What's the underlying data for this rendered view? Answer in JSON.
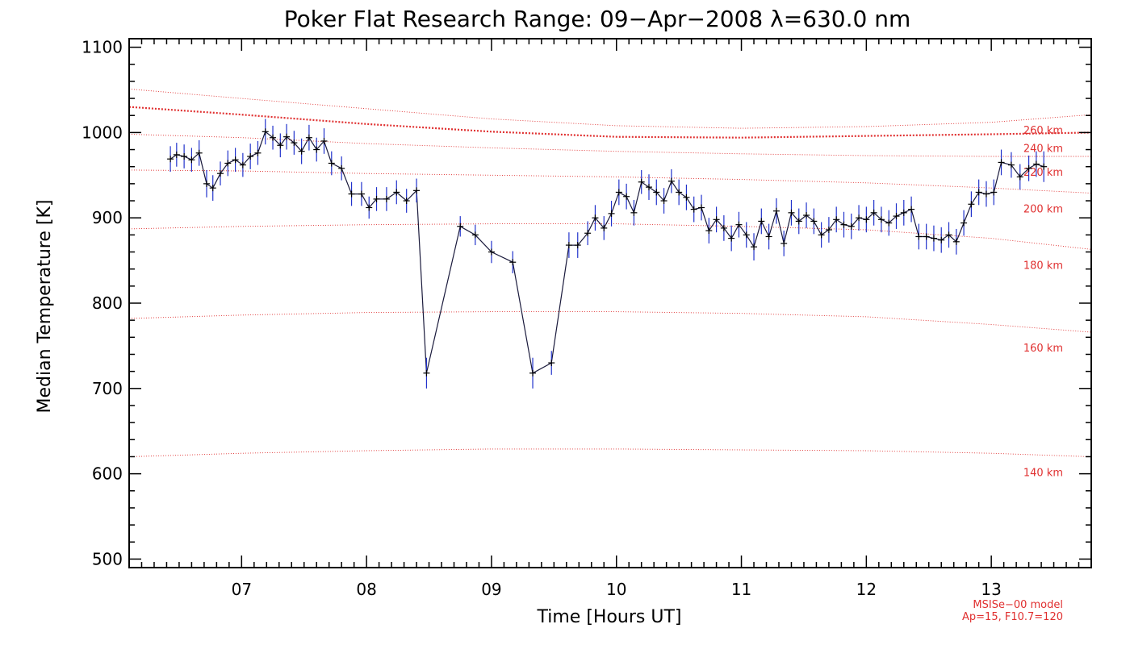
{
  "chart_data": {
    "type": "line",
    "title": "Poker Flat Research Range: 09−Apr−2008 λ=630.0 nm",
    "xlabel": "Time [Hours UT]",
    "ylabel": "Median Temperature [K]",
    "xlim": [
      6.1,
      13.8
    ],
    "ylim": [
      490,
      1110
    ],
    "xticks": [
      7,
      8,
      9,
      10,
      11,
      12,
      13
    ],
    "xtick_labels": [
      "07",
      "08",
      "09",
      "10",
      "11",
      "12",
      "13"
    ],
    "yticks": [
      500,
      600,
      700,
      800,
      900,
      1000,
      1100
    ],
    "ytick_labels": [
      "500",
      "600",
      "700",
      "800",
      "900",
      "1000",
      "1100"
    ],
    "grid": false,
    "series": [
      {
        "x": [
          6.43,
          6.48,
          6.54,
          6.6,
          6.66,
          6.72,
          6.77,
          6.83,
          6.89,
          6.95,
          7.01,
          7.07,
          7.13,
          7.19,
          7.25,
          7.31,
          7.36,
          7.42,
          7.48,
          7.54,
          7.6,
          7.66,
          7.72,
          7.8,
          7.88,
          7.96,
          8.02,
          8.08,
          8.16,
          8.24,
          8.32,
          8.4,
          8.48,
          8.75,
          8.87,
          9.0,
          9.17,
          9.33,
          9.48,
          9.62,
          9.69,
          9.77,
          9.83,
          9.9,
          9.96,
          10.02,
          10.08,
          10.14,
          10.2,
          10.26,
          10.32,
          10.38,
          10.44,
          10.5,
          10.56,
          10.62,
          10.68,
          10.74,
          10.8,
          10.86,
          10.92,
          10.98,
          11.04,
          11.1,
          11.16,
          11.22,
          11.28,
          11.34,
          11.4,
          11.46,
          11.52,
          11.58,
          11.64,
          11.7,
          11.76,
          11.82,
          11.88,
          11.94,
          12.0,
          12.06,
          12.12,
          12.18,
          12.24,
          12.3,
          12.36,
          12.42,
          12.48,
          12.54,
          12.6,
          12.66,
          12.72,
          12.78,
          12.84,
          12.9,
          12.96,
          13.02,
          13.08,
          13.16,
          13.23,
          13.3,
          13.36,
          13.42
        ],
        "values": [
          969,
          974,
          972,
          968,
          976,
          940,
          935,
          952,
          964,
          968,
          962,
          972,
          976,
          1001,
          994,
          985,
          995,
          988,
          978,
          994,
          980,
          990,
          964,
          958,
          928,
          928,
          912,
          922,
          922,
          930,
          920,
          932,
          718,
          890,
          880,
          860,
          848,
          718,
          730,
          868,
          868,
          882,
          900,
          888,
          905,
          930,
          925,
          906,
          942,
          936,
          930,
          920,
          943,
          930,
          924,
          910,
          912,
          885,
          898,
          888,
          876,
          892,
          880,
          866,
          896,
          878,
          908,
          870,
          906,
          896,
          903,
          896,
          880,
          886,
          898,
          892,
          890,
          900,
          898,
          906,
          898,
          894,
          902,
          906,
          910,
          878,
          878,
          876,
          874,
          880,
          872,
          894,
          916,
          930,
          928,
          930,
          965,
          962,
          948,
          958,
          963,
          960
        ],
        "errors": [
          15,
          14,
          14,
          14,
          15,
          16,
          15,
          14,
          15,
          14,
          14,
          15,
          14,
          15,
          14,
          14,
          15,
          14,
          15,
          15,
          14,
          15,
          14,
          14,
          14,
          14,
          13,
          14,
          14,
          14,
          14,
          14,
          18,
          12,
          12,
          13,
          13,
          18,
          14,
          15,
          15,
          14,
          15,
          14,
          15,
          15,
          15,
          15,
          14,
          15,
          15,
          15,
          14,
          15,
          15,
          15,
          15,
          15,
          15,
          15,
          15,
          15,
          15,
          16,
          15,
          15,
          15,
          15,
          15,
          15,
          15,
          15,
          15,
          15,
          15,
          15,
          15,
          15,
          15,
          15,
          15,
          15,
          15,
          15,
          15,
          15,
          15,
          15,
          15,
          15,
          15,
          15,
          15,
          15,
          15,
          15,
          15,
          15,
          15,
          15,
          15,
          18
        ]
      }
    ],
    "model_curves": [
      {
        "label": "140 km",
        "x": [
          6.1,
          7.0,
          8.0,
          9.0,
          10.0,
          11.0,
          12.0,
          13.0,
          13.8
        ],
        "values": [
          620,
          624,
          627,
          629,
          629,
          628,
          627,
          624,
          620
        ]
      },
      {
        "label": "160 km",
        "x": [
          6.1,
          7.0,
          8.0,
          9.0,
          10.0,
          11.0,
          12.0,
          13.0,
          13.8
        ],
        "values": [
          782,
          786,
          789,
          790,
          790,
          788,
          784,
          775,
          766
        ]
      },
      {
        "label": "180 km",
        "x": [
          6.1,
          7.0,
          8.0,
          9.0,
          10.0,
          11.0,
          12.0,
          13.0,
          13.8
        ],
        "values": [
          887,
          890,
          892,
          893,
          893,
          890,
          886,
          876,
          863
        ]
      },
      {
        "label": "200 km",
        "x": [
          6.1,
          7.0,
          8.0,
          9.0,
          10.0,
          11.0,
          12.0,
          13.0,
          13.8
        ],
        "values": [
          956,
          955,
          952,
          950,
          948,
          945,
          941,
          935,
          929
        ]
      },
      {
        "label": "220 km",
        "x": [
          6.1,
          7.0,
          8.0,
          9.0,
          10.0,
          11.0,
          12.0,
          13.0,
          13.8
        ],
        "values": [
          998,
          994,
          987,
          982,
          978,
          975,
          973,
          972,
          972
        ]
      },
      {
        "label": "240 km",
        "x": [
          6.1,
          7.0,
          8.0,
          9.0,
          10.0,
          11.0,
          12.0,
          13.0,
          13.8
        ],
        "values": [
          1030,
          1021,
          1010,
          1001,
          995,
          994,
          996,
          998,
          1000
        ]
      },
      {
        "label": "260 km",
        "x": [
          6.1,
          7.0,
          8.0,
          9.0,
          10.0,
          11.0,
          12.0,
          13.0,
          13.8
        ],
        "values": [
          1051,
          1040,
          1028,
          1016,
          1008,
          1005,
          1007,
          1012,
          1021
        ]
      }
    ],
    "model_annotation": [
      "MSISe−00 model",
      "Ap=15, F10.7=120"
    ],
    "colors": {
      "data_line": "#1a1a3c",
      "error_bars": "#2233cc",
      "markers": "#000000",
      "model": "#e03030"
    }
  }
}
